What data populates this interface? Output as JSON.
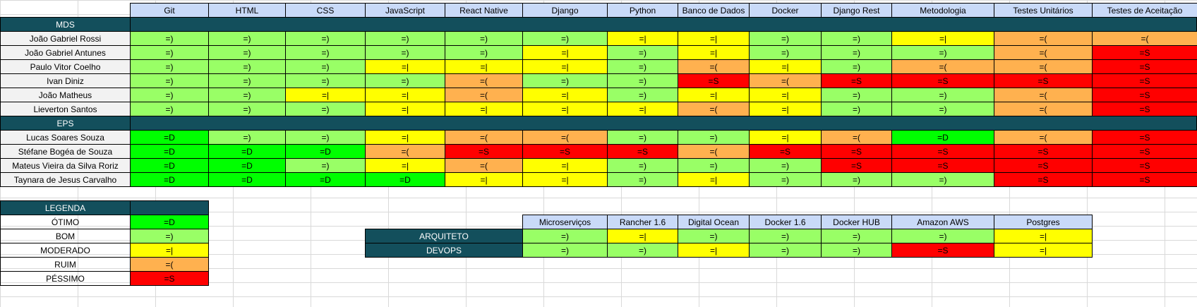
{
  "main": {
    "columns": [
      "Git",
      "HTML",
      "CSS",
      "JavaScript",
      "React Native",
      "Django",
      "Python",
      "Banco de Dados",
      "Docker",
      "Django Rest",
      "Metodologia",
      "Testes Unitários",
      "Testes de Aceitação"
    ],
    "groups": [
      {
        "name": "MDS",
        "rows": [
          {
            "name": "João Gabriel Rossi",
            "values": [
              "=)",
              "=)",
              "=)",
              "=)",
              "=)",
              "=)",
              "=|",
              "=|",
              "=)",
              "=)",
              "=|",
              "=(",
              "=("
            ]
          },
          {
            "name": "João Gabriel Antunes",
            "values": [
              "=)",
              "=)",
              "=)",
              "=)",
              "=)",
              "=|",
              "=)",
              "=|",
              "=)",
              "=)",
              "=)",
              "=(",
              "=S"
            ]
          },
          {
            "name": "Paulo Vitor Coelho",
            "values": [
              "=)",
              "=)",
              "=)",
              "=|",
              "=|",
              "=|",
              "=)",
              "=(",
              "=|",
              "=)",
              "=(",
              "=(",
              "=S"
            ]
          },
          {
            "name": "Ivan Diniz",
            "values": [
              "=)",
              "=)",
              "=)",
              "=)",
              "=(",
              "=)",
              "=)",
              "=S",
              "=(",
              "=S",
              "=S",
              "=S",
              "=S"
            ]
          },
          {
            "name": "João Matheus",
            "values": [
              "=)",
              "=)",
              "=|",
              "=|",
              "=(",
              "=|",
              "=)",
              "=|",
              "=|",
              "=)",
              "=)",
              "=(",
              "=S"
            ]
          },
          {
            "name": "Lieverton Santos",
            "values": [
              "=)",
              "=)",
              "=)",
              "=|",
              "=|",
              "=|",
              "=|",
              "=(",
              "=|",
              "=)",
              "=)",
              "=(",
              "=S"
            ]
          }
        ]
      },
      {
        "name": "EPS",
        "rows": [
          {
            "name": "Lucas Soares Souza",
            "values": [
              "=D",
              "=)",
              "=)",
              "=|",
              "=(",
              "=(",
              "=)",
              "=)",
              "=|",
              "=(",
              "=D",
              "=(",
              "=S"
            ]
          },
          {
            "name": "Stéfane Bogéa de Souza",
            "values": [
              "=D",
              "=D",
              "=D",
              "=(",
              "=S",
              "=S",
              "=S",
              "=(",
              "=S",
              "=S",
              "=S",
              "=S",
              "=S"
            ]
          },
          {
            "name": "Mateus Vieira da Silva Roriz",
            "values": [
              "=D",
              "=D",
              "=)",
              "=|",
              "=(",
              "=|",
              "=)",
              "=)",
              "=)",
              "=S",
              "=S",
              "=S",
              "=S"
            ]
          },
          {
            "name": "Taynara de Jesus Carvalho",
            "values": [
              "=D",
              "=D",
              "=D",
              "=D",
              "=|",
              "=|",
              "=)",
              "=|",
              "=)",
              "=)",
              "=)",
              "=S",
              "=S"
            ]
          }
        ]
      }
    ]
  },
  "legend": {
    "title": "LEGENDA",
    "items": [
      {
        "label": "ÓTIMO",
        "value": "=D"
      },
      {
        "label": "BOM",
        "value": "=)"
      },
      {
        "label": "MODERADO",
        "value": "=|"
      },
      {
        "label": "RUIM",
        "value": "=("
      },
      {
        "label": "PÉSSIMO",
        "value": "=S"
      }
    ]
  },
  "roles": {
    "columns": [
      "Microserviços",
      "Rancher 1.6",
      "Digital Ocean",
      "Docker 1.6",
      "Docker HUB",
      "Amazon AWS",
      "Postgres"
    ],
    "rows": [
      {
        "name": "ARQUITETO",
        "values": [
          "=)",
          "=|",
          "=)",
          "=)",
          "=)",
          "=)",
          "=|"
        ]
      },
      {
        "name": "DEVOPS",
        "values": [
          "=)",
          "=)",
          "=|",
          "=)",
          "=)",
          "=S",
          "=|"
        ]
      }
    ]
  },
  "colors": {
    "=D": "#00ff00",
    "=)": "#99ff66",
    "=|": "#ffff00",
    "=(": "#ffb14f",
    "=S": "#ff0000",
    "header": "#c9daf8",
    "section": "#134f5c"
  }
}
